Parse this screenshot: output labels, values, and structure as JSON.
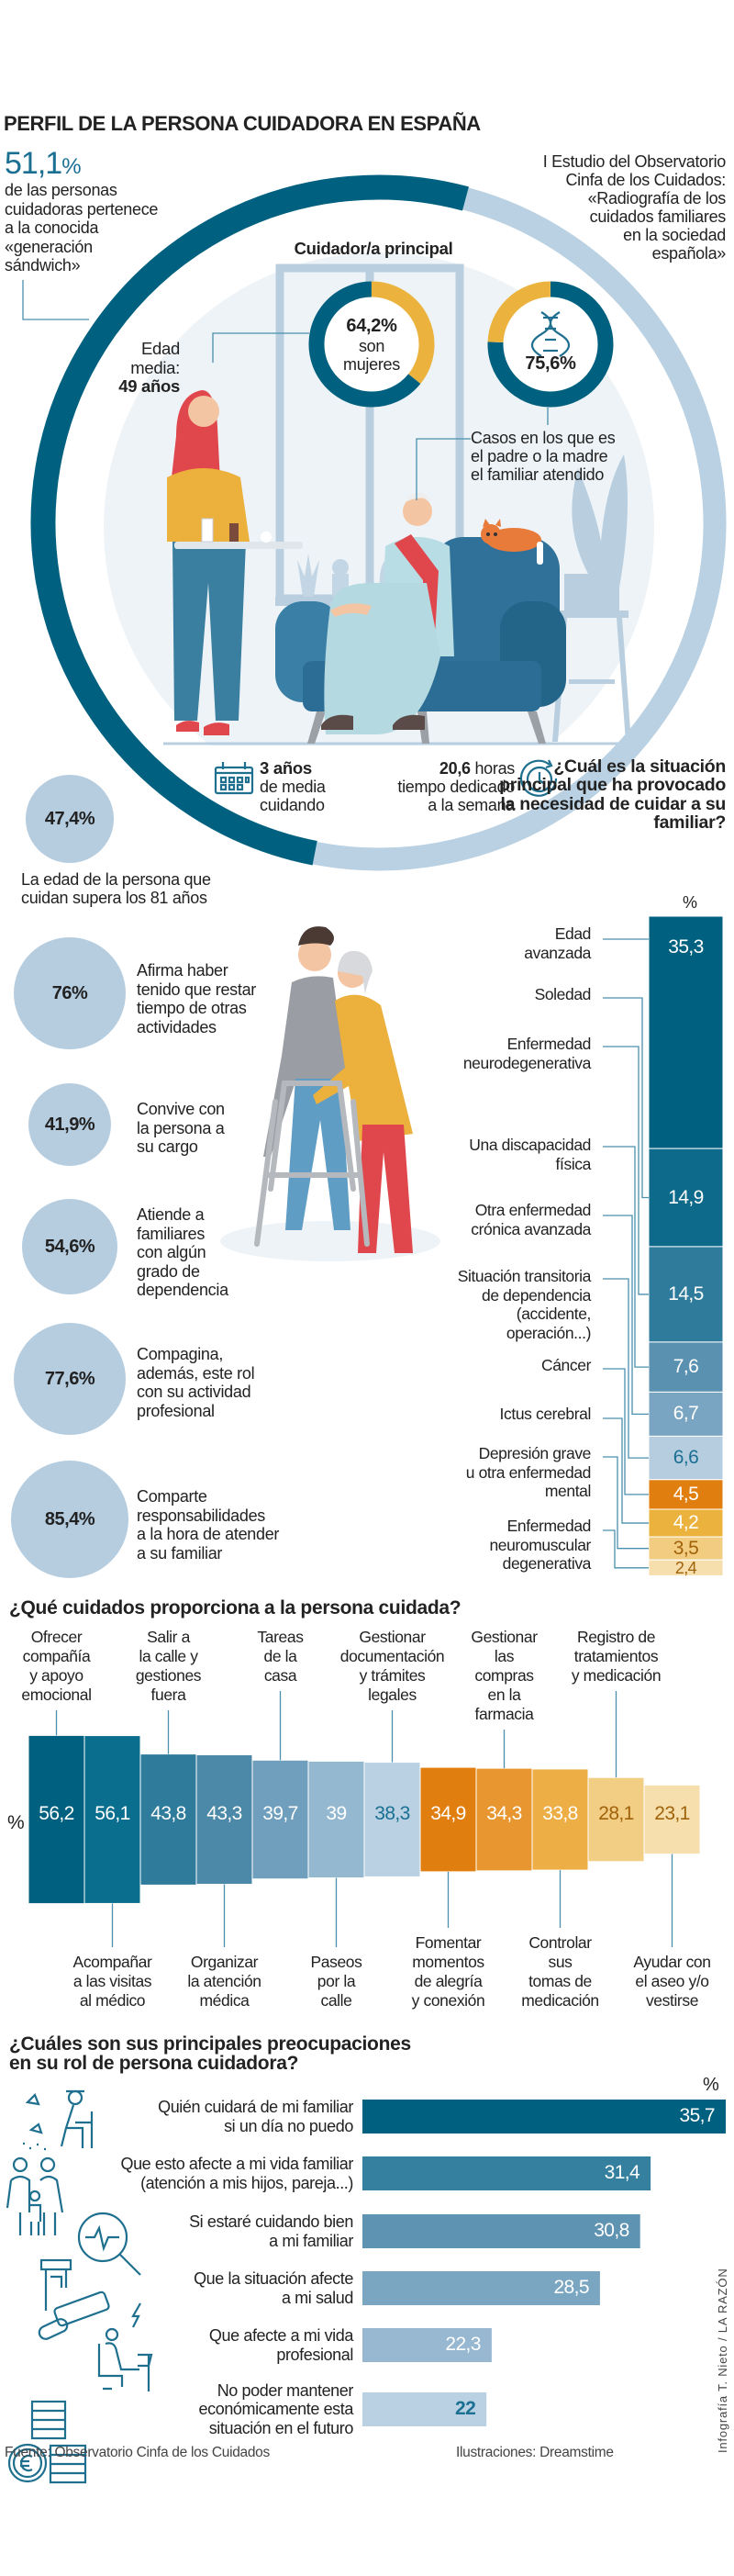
{
  "header": {
    "title": "PERFIL DE LA PERSONA CUIDADORA EN ESPAÑA",
    "stat_value": "51,1",
    "stat_unit": "%",
    "stat_share": 51.1,
    "stat_text": "de las personas\ncuidadoras pertenece\na la conocida\n«generación\nsándwich»",
    "study": "I Estudio del Observatorio\nCinfa de los Cuidados:\n«Radiografía de los\ncuidados familiares\nen la sociedad\nespañola»"
  },
  "profile": {
    "heading": "Cuidador/a principal",
    "women_value": "64,2%",
    "women_share": 64.2,
    "women_text": "son\nmujeres",
    "age_label": "Edad\nmedia:",
    "age_value": "49 años",
    "parent_value": "75,6%",
    "parent_share": 75.6,
    "parent_icon": "dna-icon",
    "parent_text": "Casos en los que es\nel padre o la madre\nel familiar atendido",
    "years_value": "3 años",
    "years_text": "de media\ncuidando",
    "years_icon": "calendar-icon",
    "hours_value": "20,6",
    "hours_unit": " horas",
    "hours_text": "tiempo dedicado\na la semana",
    "hours_icon": "clock-icon",
    "age81_value": "47,4%",
    "age81_text": "La edad de la persona que\ncuidan supera los 81 años"
  },
  "facts": [
    {
      "value": "76%",
      "text": "Afirma haber\ntenido que restar\ntiempo de otras\nactividades"
    },
    {
      "value": "41,9%",
      "text": "Convive con\nla persona a\nsu cargo"
    },
    {
      "value": "54,6%",
      "text": "Atiende a\nfamiliares\ncon algún\ngrado de\ndependencia"
    },
    {
      "value": "77,6%",
      "text": "Compagina,\nademás, este rol\ncon su actividad\nprofesional"
    },
    {
      "value": "85,4%",
      "text": "Comparte\nresponsabilidades\na la hora de atender\na su familiar"
    }
  ],
  "colors": {
    "dark": "#00607f",
    "light": "#b9d1e2",
    "yellow": "#ebb33e",
    "orange": "#e07f10",
    "text": "#222222",
    "accent_text": "#1a6f92"
  },
  "chart_data": [
    {
      "type": "bar",
      "orientation": "stacked-vertical",
      "title": "¿Cuál es la situación principal que ha provocado la necesidad de cuidar a su familiar?",
      "unit": "%",
      "categories": [
        "Edad\navanzada",
        "Soledad",
        "Enfermedad\nneurodegenerativa",
        "Una discapacidad\nfísica",
        "Otra enfermedad\ncrónica avanzada",
        "Situación transitoria\nde dependencia\n(accidente,\noperación...)",
        "Cáncer",
        "Ictus cerebral",
        "Depresión grave\nu otra enfermedad\nmental",
        "Enfermedad\nneuromuscular\ndegenerativa"
      ],
      "values": [
        35.3,
        14.9,
        14.5,
        7.6,
        6.7,
        6.6,
        4.5,
        4.2,
        3.5,
        2.4
      ],
      "labels": [
        "35,3",
        "14,9",
        "14,5",
        "7,6",
        "6,7",
        "6,6",
        "4,5",
        "4,2",
        "3,5",
        "2,4"
      ],
      "colors": [
        "#00607f",
        "#0d6a8b",
        "#2f7b9c",
        "#5a90b0",
        "#7aa5c2",
        "#b6cde0",
        "#e07f10",
        "#ebb33e",
        "#f2cc80",
        "#f6dfad"
      ]
    },
    {
      "type": "bar",
      "orientation": "vertical",
      "title": "¿Qué cuidados proporciona a la persona cuidada?",
      "unit": "%",
      "categories": [
        "Ofrecer\ncompañía\ny apoyo\nemocional",
        "Acompañar\na las visitas\nal médico",
        "Salir a\nla calle y\ngestiones\nfuera",
        "Organizar\nla atención\nmédica",
        "Tareas\nde la\ncasa",
        "Paseos\npor la\ncalle",
        "Gestionar\ndocumentación\ny trámites\nlegales",
        "Fomentar\nmomentos\nde alegría\ny conexión",
        "Gestionar\nlas\ncompras\nen la\nfarmacia",
        "Controlar\nsus\ntomas de\nmedicación",
        "Registro de\ntratamientos\ny medicación",
        "Ayudar con\nel aseo y/o\nvestirse"
      ],
      "values": [
        56.2,
        56.1,
        43.8,
        43.3,
        39.7,
        39,
        38.3,
        34.9,
        34.3,
        33.8,
        28.1,
        23.1
      ],
      "labels": [
        "56,2",
        "56,1",
        "43,8",
        "43,3",
        "39,7",
        "39",
        "38,3",
        "34,9",
        "34,3",
        "33,8",
        "28,1",
        "23,1"
      ],
      "colors": [
        "#00607f",
        "#0a6e8e",
        "#2f7b9c",
        "#4c88a8",
        "#6f9fbd",
        "#94b8d0",
        "#b9d1e2",
        "#e07f10",
        "#e8962f",
        "#ecae45",
        "#f2cd84",
        "#f6dfad"
      ]
    },
    {
      "type": "bar",
      "orientation": "horizontal",
      "title": "¿Cuáles son sus principales preocupaciones\nen su rol de persona cuidadora?",
      "unit": "%",
      "xlim": [
        15,
        36
      ],
      "categories": [
        "Quién cuidará de mi familiar\nsi un día no puedo",
        "Que esto afecte a mi vida familiar\n(atención a mis hijos, pareja...)",
        "Si estaré cuidando bien\na mi familiar",
        "Que la situación afecte\na mi salud",
        "Que afecte a mi vida\nprofesional",
        "No poder mantener\neconómicamente esta\nsituación en el futuro"
      ],
      "values": [
        35.7,
        31.4,
        30.8,
        28.5,
        22.3,
        22
      ],
      "labels": [
        "35,7",
        "31,4",
        "30,8",
        "28,5",
        "22,3",
        "22"
      ],
      "icons": [
        "elderly-person-icon",
        "family-icon",
        "magnifier-pulse-icon",
        "medication-icon",
        "worker-stress-icon",
        "euro-coins-icon"
      ],
      "colors": [
        "#00607f",
        "#35809f",
        "#5e93b2",
        "#7ba6c2",
        "#97b8d0",
        "#b9d1e2"
      ]
    }
  ],
  "footer": {
    "source": "Fuente: Observatorio Cinfa de los Cuidados",
    "illustrations": "Ilustraciones: Dreamstime",
    "credit": "Infografía T. Nieto / LA RAZÓN"
  }
}
